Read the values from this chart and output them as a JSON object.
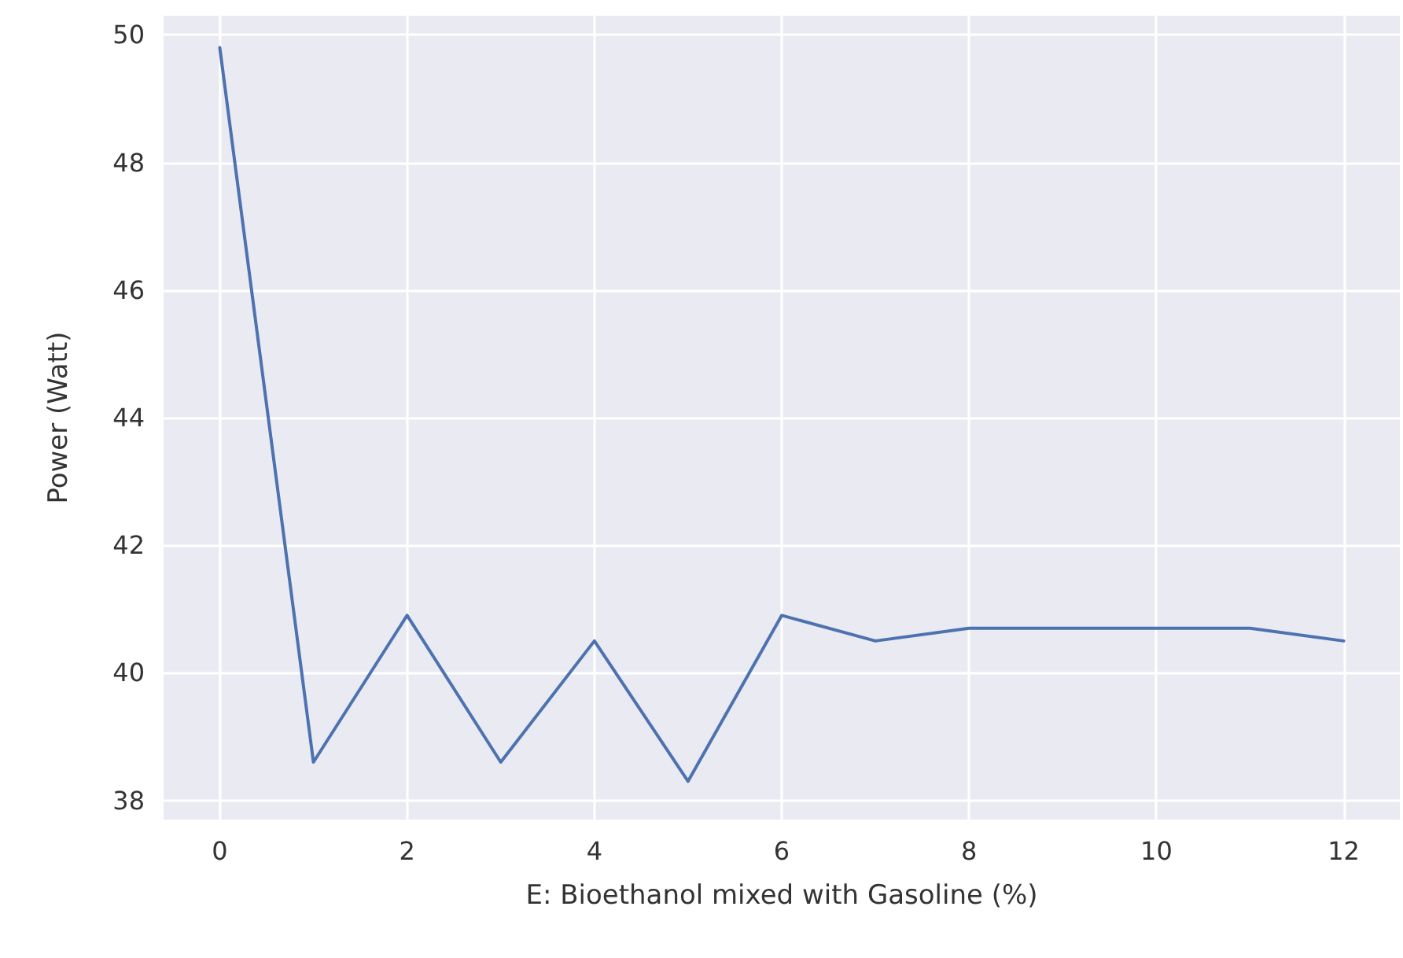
{
  "chart_data": {
    "type": "line",
    "xlabel": "E: Bioethanol mixed with Gasoline (%)",
    "ylabel": "Power (Watt)",
    "x": [
      0,
      1,
      2,
      3,
      4,
      5,
      6,
      7,
      8,
      9,
      10,
      11,
      12
    ],
    "series": [
      {
        "color": "#4c72b0",
        "values": [
          49.8,
          38.6,
          40.9,
          38.6,
          40.5,
          38.3,
          40.9,
          40.5,
          40.7,
          40.7,
          40.7,
          40.7,
          40.5
        ]
      }
    ],
    "xlim": [
      -0.6,
      12.6
    ],
    "xticks": [
      0,
      2,
      4,
      6,
      8,
      10,
      12
    ],
    "ylim": [
      37.7,
      50.3
    ],
    "yticks": [
      38,
      40,
      42,
      44,
      46,
      48,
      50
    ],
    "grid": true,
    "marker": "none",
    "line_style": "solid"
  }
}
